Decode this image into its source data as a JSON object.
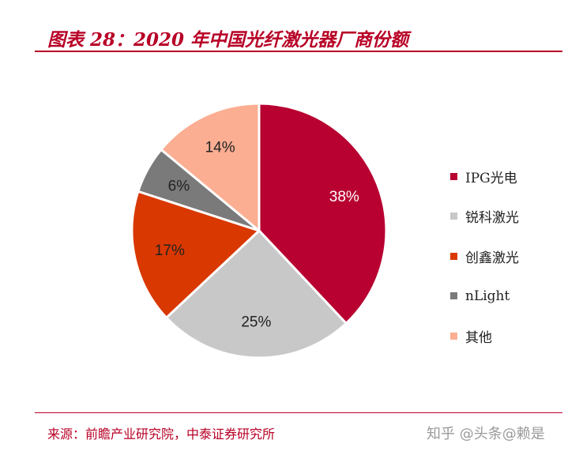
{
  "header": {
    "title": "图表 28：2020 年中国光纤激光器厂商份额"
  },
  "chart_data": {
    "type": "pie",
    "categories": [
      "IPG光电",
      "锐科激光",
      "创鑫激光",
      "nLight",
      "其他"
    ],
    "values": [
      38,
      25,
      17,
      6,
      14
    ],
    "labels": [
      "38%",
      "25%",
      "17%",
      "6%",
      "14%"
    ],
    "colors": [
      "#b80031",
      "#c8c8c8",
      "#d93800",
      "#7a7a7a",
      "#fbae92"
    ],
    "label_colors": [
      "#ffffff",
      "#222222",
      "#222222",
      "#222222",
      "#222222"
    ],
    "legend_placement": "right"
  },
  "footer": {
    "source": "来源：前瞻产业研究院，中泰证券研究所",
    "watermark": "知乎 @头条@赖是"
  }
}
